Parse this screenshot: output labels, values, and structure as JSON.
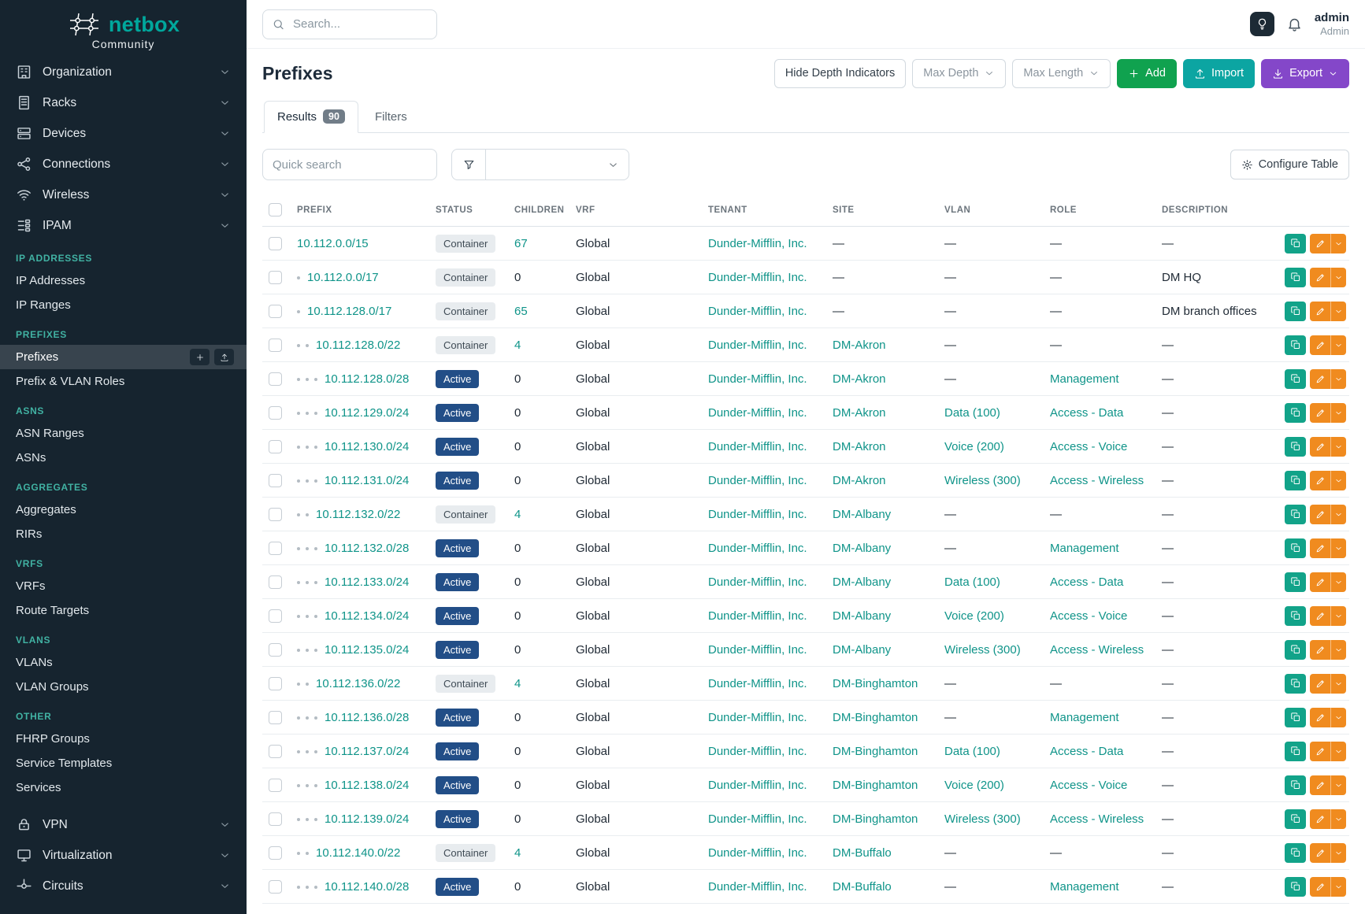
{
  "brand": {
    "name": "netbox",
    "subtitle": "Community"
  },
  "topbar": {
    "search_placeholder": "Search...",
    "username": "admin",
    "role": "Admin"
  },
  "sidebar": {
    "top_items": [
      {
        "label": "Organization",
        "icon": "organization-icon"
      },
      {
        "label": "Racks",
        "icon": "racks-icon"
      },
      {
        "label": "Devices",
        "icon": "devices-icon"
      },
      {
        "label": "Connections",
        "icon": "connections-icon"
      },
      {
        "label": "Wireless",
        "icon": "wireless-icon"
      },
      {
        "label": "IPAM",
        "icon": "ipam-icon"
      }
    ],
    "sections": [
      {
        "header": "IP ADDRESSES",
        "items": [
          {
            "label": "IP Addresses",
            "active": false
          },
          {
            "label": "IP Ranges",
            "active": false
          }
        ]
      },
      {
        "header": "PREFIXES",
        "items": [
          {
            "label": "Prefixes",
            "active": true
          },
          {
            "label": "Prefix & VLAN Roles",
            "active": false
          }
        ]
      },
      {
        "header": "ASNS",
        "items": [
          {
            "label": "ASN Ranges",
            "active": false
          },
          {
            "label": "ASNs",
            "active": false
          }
        ]
      },
      {
        "header": "AGGREGATES",
        "items": [
          {
            "label": "Aggregates",
            "active": false
          },
          {
            "label": "RIRs",
            "active": false
          }
        ]
      },
      {
        "header": "VRFS",
        "items": [
          {
            "label": "VRFs",
            "active": false
          },
          {
            "label": "Route Targets",
            "active": false
          }
        ]
      },
      {
        "header": "VLANS",
        "items": [
          {
            "label": "VLANs",
            "active": false
          },
          {
            "label": "VLAN Groups",
            "active": false
          }
        ]
      },
      {
        "header": "OTHER",
        "items": [
          {
            "label": "FHRP Groups",
            "active": false
          },
          {
            "label": "Service Templates",
            "active": false
          },
          {
            "label": "Services",
            "active": false
          }
        ]
      }
    ],
    "bottom_items": [
      {
        "label": "VPN",
        "icon": "vpn-icon"
      },
      {
        "label": "Virtualization",
        "icon": "virtualization-icon"
      },
      {
        "label": "Circuits",
        "icon": "circuits-icon"
      }
    ]
  },
  "page": {
    "title": "Prefixes",
    "hide_depth_label": "Hide Depth Indicators",
    "max_depth_label": "Max Depth",
    "max_length_label": "Max Length",
    "add_label": "Add",
    "import_label": "Import",
    "export_label": "Export",
    "tabs": [
      {
        "label": "Results",
        "badge": "90",
        "active": true
      },
      {
        "label": "Filters",
        "badge": "",
        "active": false
      }
    ],
    "quick_search_placeholder": "Quick search",
    "configure_table_label": "Configure Table"
  },
  "table": {
    "columns": [
      "PREFIX",
      "STATUS",
      "CHILDREN",
      "VRF",
      "TENANT",
      "SITE",
      "VLAN",
      "ROLE",
      "DESCRIPTION"
    ],
    "rows": [
      {
        "depth": 0,
        "prefix": "10.112.0.0/15",
        "status": "Container",
        "children": "67",
        "children_link": true,
        "vrf": "Global",
        "tenant": "Dunder-Mifflin, Inc.",
        "site": "—",
        "vlan": "—",
        "role": "—",
        "description": "—"
      },
      {
        "depth": 1,
        "prefix": "10.112.0.0/17",
        "status": "Container",
        "children": "0",
        "children_link": false,
        "vrf": "Global",
        "tenant": "Dunder-Mifflin, Inc.",
        "site": "—",
        "vlan": "—",
        "role": "—",
        "description": "DM HQ"
      },
      {
        "depth": 1,
        "prefix": "10.112.128.0/17",
        "status": "Container",
        "children": "65",
        "children_link": true,
        "vrf": "Global",
        "tenant": "Dunder-Mifflin, Inc.",
        "site": "—",
        "vlan": "—",
        "role": "—",
        "description": "DM branch offices"
      },
      {
        "depth": 2,
        "prefix": "10.112.128.0/22",
        "status": "Container",
        "children": "4",
        "children_link": true,
        "vrf": "Global",
        "tenant": "Dunder-Mifflin, Inc.",
        "site": "DM-Akron",
        "vlan": "—",
        "role": "—",
        "description": "—"
      },
      {
        "depth": 3,
        "prefix": "10.112.128.0/28",
        "status": "Active",
        "children": "0",
        "children_link": false,
        "vrf": "Global",
        "tenant": "Dunder-Mifflin, Inc.",
        "site": "DM-Akron",
        "vlan": "—",
        "role": "Management",
        "description": "—"
      },
      {
        "depth": 3,
        "prefix": "10.112.129.0/24",
        "status": "Active",
        "children": "0",
        "children_link": false,
        "vrf": "Global",
        "tenant": "Dunder-Mifflin, Inc.",
        "site": "DM-Akron",
        "vlan": "Data (100)",
        "role": "Access - Data",
        "description": "—"
      },
      {
        "depth": 3,
        "prefix": "10.112.130.0/24",
        "status": "Active",
        "children": "0",
        "children_link": false,
        "vrf": "Global",
        "tenant": "Dunder-Mifflin, Inc.",
        "site": "DM-Akron",
        "vlan": "Voice (200)",
        "role": "Access - Voice",
        "description": "—"
      },
      {
        "depth": 3,
        "prefix": "10.112.131.0/24",
        "status": "Active",
        "children": "0",
        "children_link": false,
        "vrf": "Global",
        "tenant": "Dunder-Mifflin, Inc.",
        "site": "DM-Akron",
        "vlan": "Wireless (300)",
        "role": "Access - Wireless",
        "description": "—"
      },
      {
        "depth": 2,
        "prefix": "10.112.132.0/22",
        "status": "Container",
        "children": "4",
        "children_link": true,
        "vrf": "Global",
        "tenant": "Dunder-Mifflin, Inc.",
        "site": "DM-Albany",
        "vlan": "—",
        "role": "—",
        "description": "—"
      },
      {
        "depth": 3,
        "prefix": "10.112.132.0/28",
        "status": "Active",
        "children": "0",
        "children_link": false,
        "vrf": "Global",
        "tenant": "Dunder-Mifflin, Inc.",
        "site": "DM-Albany",
        "vlan": "—",
        "role": "Management",
        "description": "—"
      },
      {
        "depth": 3,
        "prefix": "10.112.133.0/24",
        "status": "Active",
        "children": "0",
        "children_link": false,
        "vrf": "Global",
        "tenant": "Dunder-Mifflin, Inc.",
        "site": "DM-Albany",
        "vlan": "Data (100)",
        "role": "Access - Data",
        "description": "—"
      },
      {
        "depth": 3,
        "prefix": "10.112.134.0/24",
        "status": "Active",
        "children": "0",
        "children_link": false,
        "vrf": "Global",
        "tenant": "Dunder-Mifflin, Inc.",
        "site": "DM-Albany",
        "vlan": "Voice (200)",
        "role": "Access - Voice",
        "description": "—"
      },
      {
        "depth": 3,
        "prefix": "10.112.135.0/24",
        "status": "Active",
        "children": "0",
        "children_link": false,
        "vrf": "Global",
        "tenant": "Dunder-Mifflin, Inc.",
        "site": "DM-Albany",
        "vlan": "Wireless (300)",
        "role": "Access - Wireless",
        "description": "—"
      },
      {
        "depth": 2,
        "prefix": "10.112.136.0/22",
        "status": "Container",
        "children": "4",
        "children_link": true,
        "vrf": "Global",
        "tenant": "Dunder-Mifflin, Inc.",
        "site": "DM-Binghamton",
        "vlan": "—",
        "role": "—",
        "description": "—"
      },
      {
        "depth": 3,
        "prefix": "10.112.136.0/28",
        "status": "Active",
        "children": "0",
        "children_link": false,
        "vrf": "Global",
        "tenant": "Dunder-Mifflin, Inc.",
        "site": "DM-Binghamton",
        "vlan": "—",
        "role": "Management",
        "description": "—"
      },
      {
        "depth": 3,
        "prefix": "10.112.137.0/24",
        "status": "Active",
        "children": "0",
        "children_link": false,
        "vrf": "Global",
        "tenant": "Dunder-Mifflin, Inc.",
        "site": "DM-Binghamton",
        "vlan": "Data (100)",
        "role": "Access - Data",
        "description": "—"
      },
      {
        "depth": 3,
        "prefix": "10.112.138.0/24",
        "status": "Active",
        "children": "0",
        "children_link": false,
        "vrf": "Global",
        "tenant": "Dunder-Mifflin, Inc.",
        "site": "DM-Binghamton",
        "vlan": "Voice (200)",
        "role": "Access - Voice",
        "description": "—"
      },
      {
        "depth": 3,
        "prefix": "10.112.139.0/24",
        "status": "Active",
        "children": "0",
        "children_link": false,
        "vrf": "Global",
        "tenant": "Dunder-Mifflin, Inc.",
        "site": "DM-Binghamton",
        "vlan": "Wireless (300)",
        "role": "Access - Wireless",
        "description": "—"
      },
      {
        "depth": 2,
        "prefix": "10.112.140.0/22",
        "status": "Container",
        "children": "4",
        "children_link": true,
        "vrf": "Global",
        "tenant": "Dunder-Mifflin, Inc.",
        "site": "DM-Buffalo",
        "vlan": "—",
        "role": "—",
        "description": "—"
      },
      {
        "depth": 3,
        "prefix": "10.112.140.0/28",
        "status": "Active",
        "children": "0",
        "children_link": false,
        "vrf": "Global",
        "tenant": "Dunder-Mifflin, Inc.",
        "site": "DM-Buffalo",
        "vlan": "—",
        "role": "Management",
        "description": "—"
      }
    ]
  },
  "colors": {
    "brand_teal": "#00a79c",
    "section_teal": "#41b2a3",
    "link_teal": "#0f9489",
    "sidebar_bg": "#16242f",
    "add_green": "#10a24f",
    "import_teal": "#0ca5a2",
    "export_purple": "#8447c9",
    "edit_orange": "#f08b1f",
    "copy_teal": "#12a389",
    "active_badge_blue": "#224e87",
    "container_badge_bg": "#e8ecef"
  }
}
